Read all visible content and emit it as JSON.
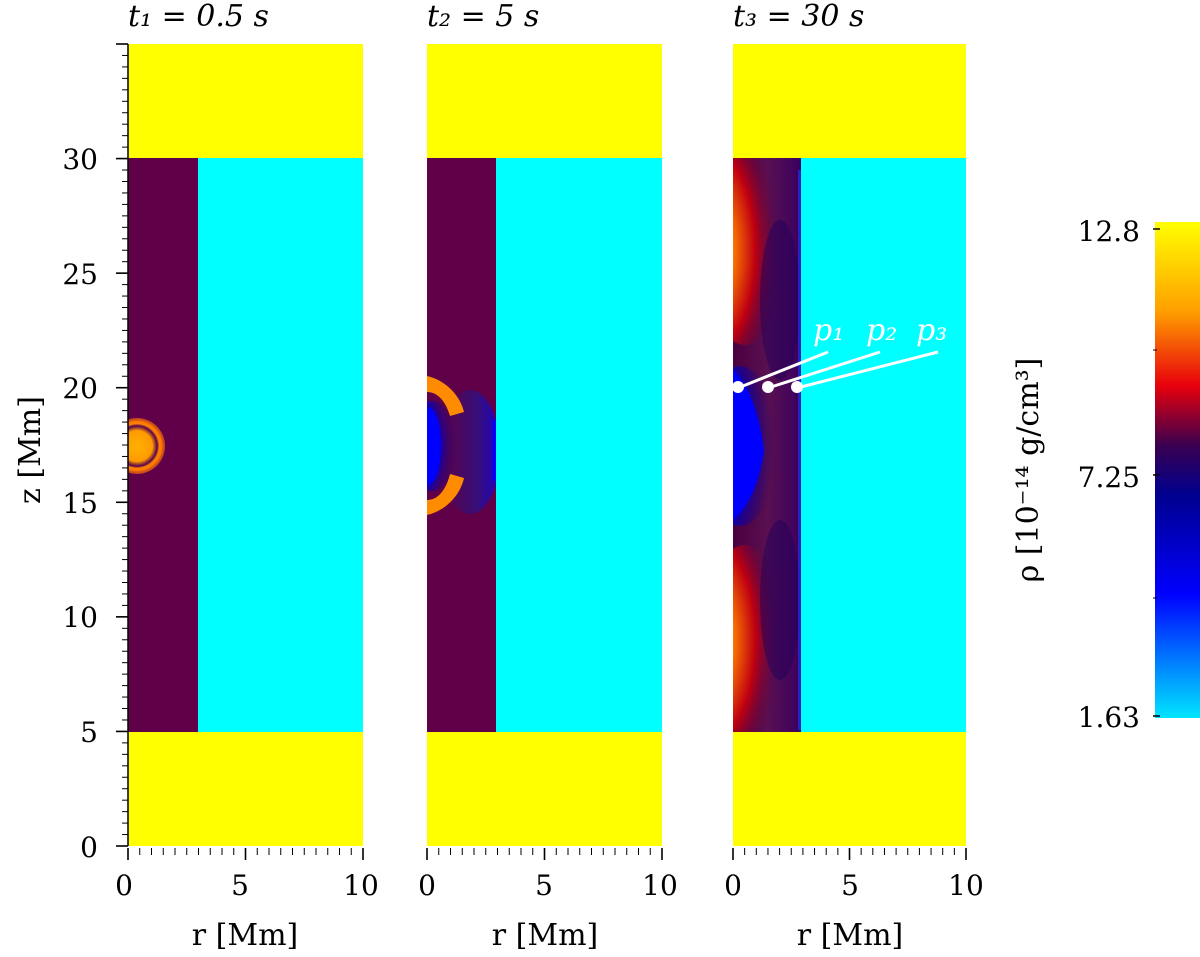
{
  "colorbar": {
    "label": "ρ [10⁻¹⁴ g/cm³]",
    "ticks": [
      "12.8",
      "7.25",
      "1.63"
    ],
    "min": 1.63,
    "max": 12.8,
    "colors": {
      "top": "#ffff00",
      "orange": "#ff9f00",
      "red": "#e8000c",
      "dark": "#3a0050",
      "navy": "#00008f",
      "blue": "#0000ff",
      "cyan": "#00e5ff"
    }
  },
  "chart_data": {
    "type": "heatmap",
    "quantity": "density ρ",
    "units": "10^-14 g/cm^3",
    "xlabel": "r [Mm]",
    "ylabel": "z [Mm]",
    "xlim": [
      0,
      10
    ],
    "ylim": [
      0,
      35
    ],
    "x_ticks": [
      "0",
      "5",
      "10"
    ],
    "y_ticks": [
      "0",
      "5",
      "10",
      "15",
      "20",
      "25",
      "30"
    ],
    "slab": {
      "r_max": 3,
      "z_min": 5,
      "z_max": 30
    },
    "panels": [
      {
        "id": "p1",
        "title": "t₁ = 0.5 s",
        "feature": "circular pulse centered near r=0.3 Mm, z=17.5 Mm"
      },
      {
        "id": "p2",
        "title": "t₂ = 5 s",
        "feature": "low-density blue core near z=17.5 Mm with dense edges"
      },
      {
        "id": "p3",
        "title": "t₃ = 30 s",
        "feature": "density enhancements at slab ends, blue core spanning z≈13–22 Mm"
      }
    ],
    "probe_points": [
      {
        "label": "p₁",
        "r": 0.3,
        "z": 20
      },
      {
        "label": "p₂",
        "r": 1.5,
        "z": 20
      },
      {
        "label": "p₃",
        "r": 2.7,
        "z": 20
      }
    ]
  }
}
